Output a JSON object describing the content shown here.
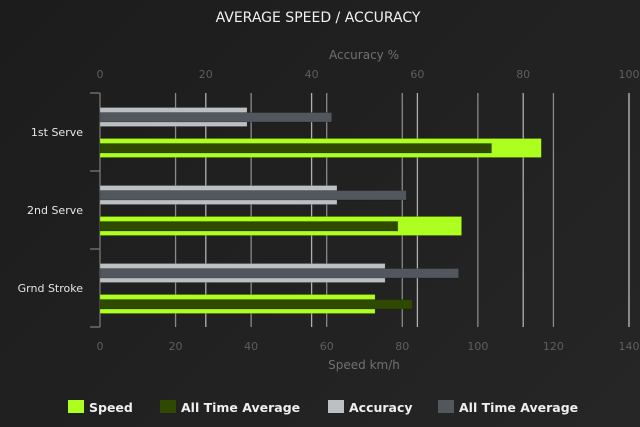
{
  "chart_data": {
    "type": "bar",
    "orientation": "horizontal",
    "title": "AVERAGE SPEED / ACCURACY",
    "categories": [
      "1st Serve",
      "2nd Serve",
      "Grnd Stroke"
    ],
    "x_bottom": {
      "label": "Speed km/h",
      "range": [
        0,
        140
      ],
      "ticks": [
        "0",
        "20",
        "40",
        "60",
        "80",
        "100",
        "120",
        "140"
      ]
    },
    "x_top": {
      "label": "Accuracy %",
      "range": [
        0,
        100
      ],
      "ticks": [
        "0",
        "20",
        "40",
        "60",
        "80",
        "100"
      ]
    },
    "grid": true,
    "legend_position": "bottom",
    "series": [
      {
        "name": "Speed",
        "axis": "bottom",
        "color": "#adff1f",
        "values": [
          116.8,
          95.7,
          72.8
        ]
      },
      {
        "name": "All Time Average",
        "axis": "bottom",
        "color": "#2f4a00",
        "values": [
          103.6,
          78.8,
          82.7
        ]
      },
      {
        "name": "Accuracy",
        "axis": "top",
        "color": "#bcc0c3",
        "values": [
          27.8,
          44.8,
          53.9
        ]
      },
      {
        "name": "All Time Average",
        "axis": "top",
        "color": "#52575e",
        "values": [
          43.8,
          57.9,
          67.8
        ]
      }
    ]
  }
}
